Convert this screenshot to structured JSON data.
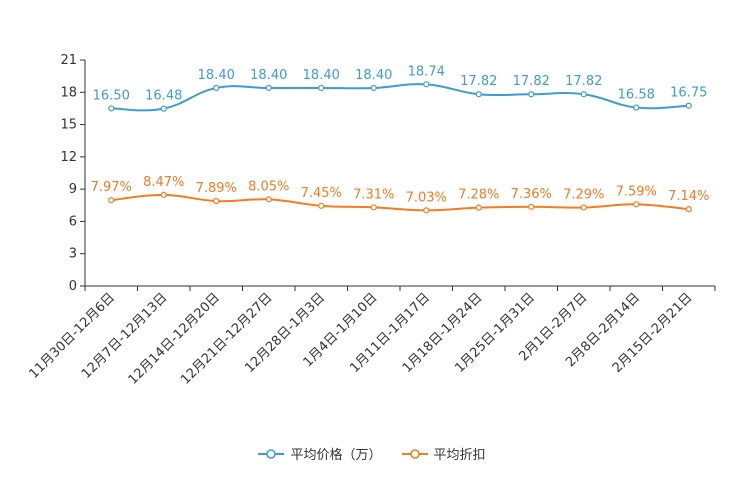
{
  "chart_data": {
    "type": "line",
    "categories": [
      "11月30日-12月6日",
      "12月7日-12月13日",
      "12月14日-12月20日",
      "12月21日-12月27日",
      "12月28日-1月3日",
      "1月4日-1月10日",
      "1月11日-1月17日",
      "1月18日-1月24日",
      "1月25日-1月31日",
      "2月1日-2月7日",
      "2月8日-2月14日",
      "2月15日-2月21日"
    ],
    "y_ticks": [
      0,
      3,
      6,
      9,
      12,
      15,
      18,
      21
    ],
    "ylim": [
      0,
      21
    ],
    "series": [
      {
        "name": "平均价格（万）",
        "color": "#3b9ed1",
        "values": [
          16.5,
          16.48,
          18.4,
          18.4,
          18.4,
          18.4,
          18.74,
          17.82,
          17.82,
          17.82,
          16.58,
          16.75
        ],
        "labels": [
          "16.50",
          "16.48",
          "18.40",
          "18.40",
          "18.40",
          "18.40",
          "18.74",
          "17.82",
          "17.82",
          "17.82",
          "16.58",
          "16.75"
        ]
      },
      {
        "name": "平均折扣",
        "color": "#f57c1f",
        "values": [
          7.97,
          8.47,
          7.89,
          8.05,
          7.45,
          7.31,
          7.03,
          7.28,
          7.36,
          7.29,
          7.59,
          7.14
        ],
        "labels": [
          "7.97%",
          "8.47%",
          "7.89%",
          "8.05%",
          "7.45%",
          "7.31%",
          "7.03%",
          "7.28%",
          "7.36%",
          "7.29%",
          "7.59%",
          "7.14%"
        ]
      }
    ]
  }
}
